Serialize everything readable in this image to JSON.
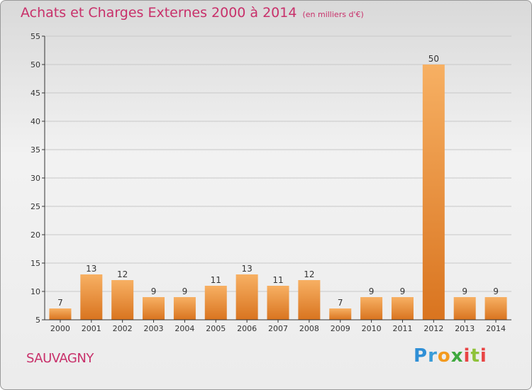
{
  "title": "Achats et Charges Externes 2000 à 2014",
  "subtitle": "(en milliers d'€)",
  "commune": "SAUVAGNY",
  "logo": "Proxiti",
  "colors": {
    "title": "#c8306a",
    "bar_top": "#f7b063",
    "bar_bottom": "#d9741f",
    "grid": "#c8c8c8",
    "axis": "#333333"
  },
  "chart_data": {
    "type": "bar",
    "categories": [
      "2000",
      "2001",
      "2002",
      "2003",
      "2004",
      "2005",
      "2006",
      "2007",
      "2008",
      "2009",
      "2010",
      "2011",
      "2012",
      "2013",
      "2014"
    ],
    "values": [
      7,
      13,
      12,
      9,
      9,
      11,
      13,
      11,
      12,
      7,
      9,
      9,
      50,
      9,
      9
    ],
    "ylim": [
      5,
      55
    ],
    "yticks": [
      5,
      10,
      15,
      20,
      25,
      30,
      35,
      40,
      45,
      50,
      55
    ],
    "grid": true,
    "xlabel": "",
    "ylabel": ""
  }
}
